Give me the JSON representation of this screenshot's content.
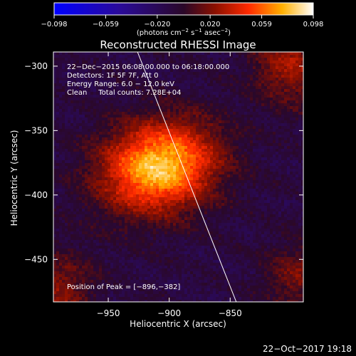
{
  "chart_data": {
    "type": "heatmap",
    "title": "Reconstructed RHESSI Image",
    "xlabel": "Heliocentric X (arcsec)",
    "ylabel": "Heliocentric Y (arcsec)",
    "xlim": [
      -995,
      -790
    ],
    "ylim": [
      -483,
      -289
    ],
    "x_ticks": [
      {
        "value": -950,
        "label": "−950"
      },
      {
        "value": -900,
        "label": "−900"
      },
      {
        "value": -850,
        "label": "−850"
      }
    ],
    "y_ticks": [
      {
        "value": -300,
        "label": "−300"
      },
      {
        "value": -350,
        "label": "−350"
      },
      {
        "value": -400,
        "label": "−400"
      },
      {
        "value": -450,
        "label": "−450"
      }
    ],
    "colorbar": {
      "min": -0.098,
      "max": 0.098,
      "ticks": [
        {
          "value": -0.098,
          "label": "−0.098"
        },
        {
          "value": -0.059,
          "label": "−0.059"
        },
        {
          "value": -0.02,
          "label": "−0.020"
        },
        {
          "value": 0.02,
          "label": "0.020"
        },
        {
          "value": 0.059,
          "label": "0.059"
        },
        {
          "value": 0.098,
          "label": "0.098"
        }
      ],
      "unit_parts": [
        "(photons cm",
        "−2",
        " s",
        "−1",
        " asec",
        "−2",
        ")"
      ]
    },
    "annotations": [
      "22−Dec−2015 06:08:00.000 to 06:18:00.000",
      "Detectors: 1F 5F 7F, Att 0",
      "Energy Range: 6.0 − 12.0 keV",
      "Clean     Total counts: 7.28E+04"
    ],
    "peak_label": "Position of Peak = [−896,−382]",
    "peak": [
      -896,
      -382
    ],
    "limb_line": [
      [
        -926,
        -289
      ],
      [
        -845,
        -483
      ]
    ],
    "source_core_peak": 0.098,
    "background_level": -0.01
  },
  "footer": {
    "date": "22−Oct−2017 19:18"
  }
}
